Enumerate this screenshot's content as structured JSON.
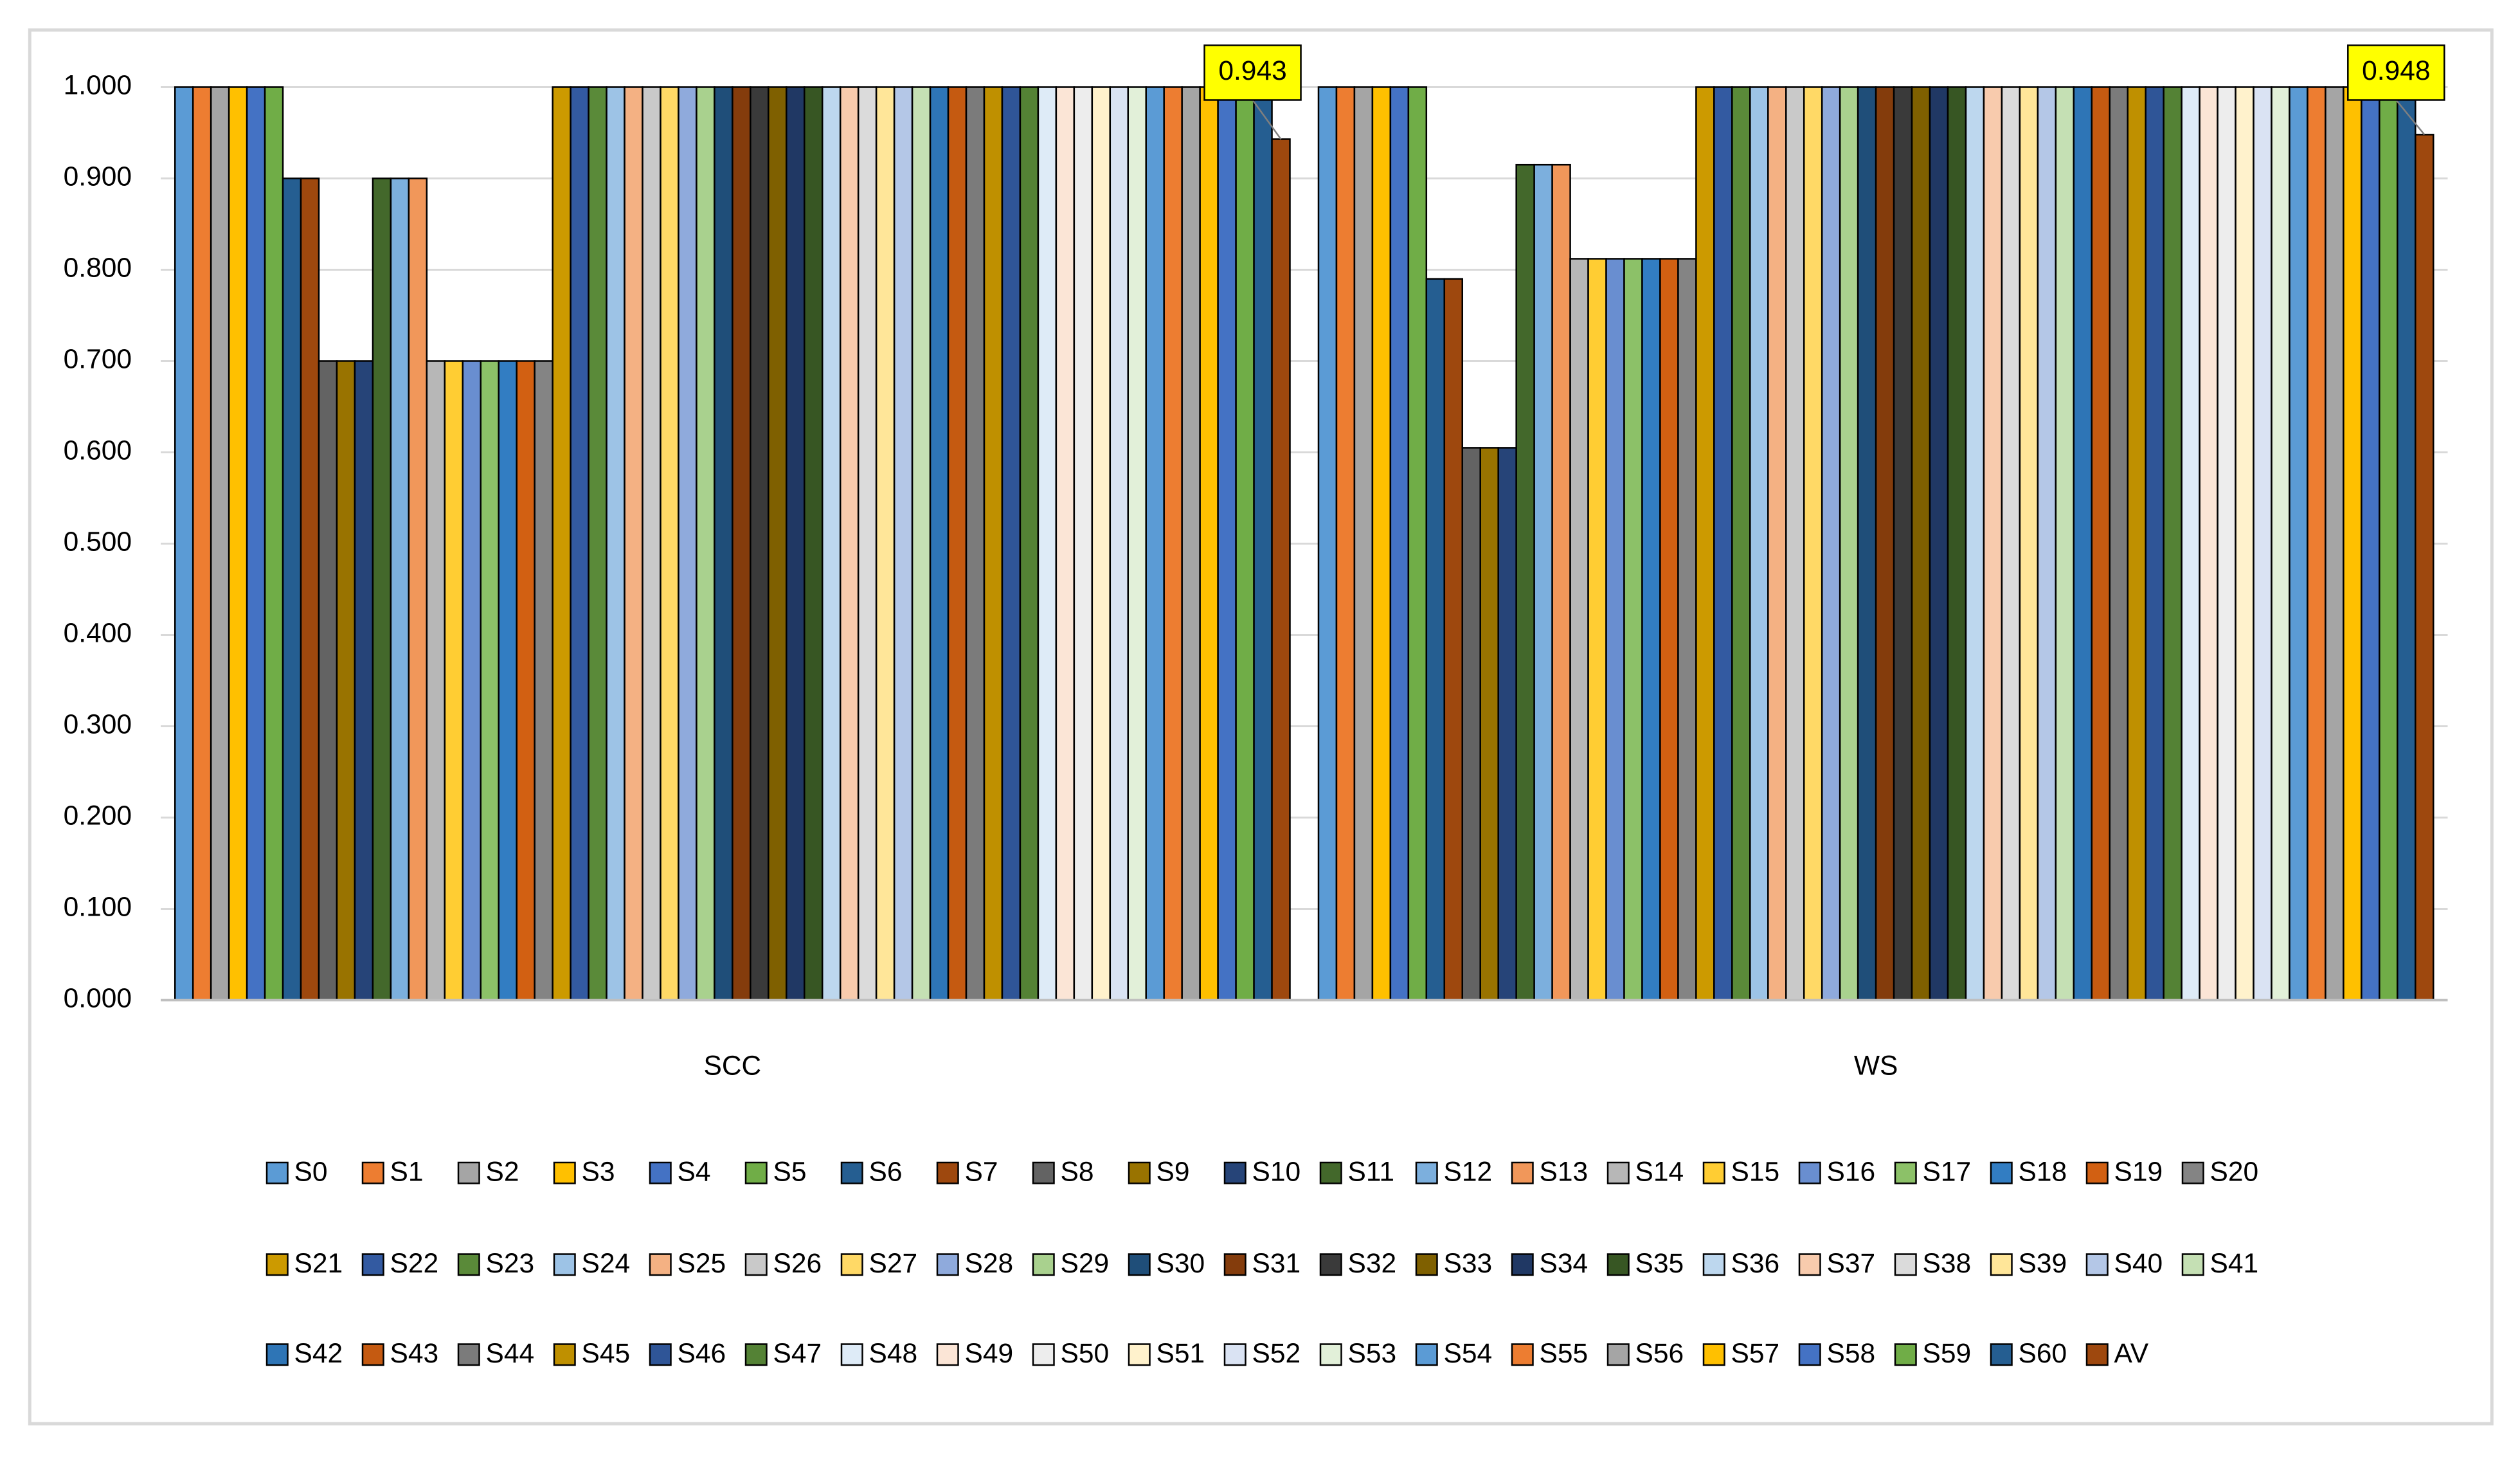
{
  "chart_data": {
    "type": "bar",
    "categories": [
      "SCC",
      "WS"
    ],
    "ylim": [
      0,
      1
    ],
    "yticks": [
      {
        "value": 0,
        "label": "0.000"
      },
      {
        "value": 0.1,
        "label": "0.100"
      },
      {
        "value": 0.2,
        "label": "0.200"
      },
      {
        "value": 0.3,
        "label": "0.300"
      },
      {
        "value": 0.4,
        "label": "0.400"
      },
      {
        "value": 0.5,
        "label": "0.500"
      },
      {
        "value": 0.6,
        "label": "0.600"
      },
      {
        "value": 0.7,
        "label": "0.700"
      },
      {
        "value": 0.8,
        "label": "0.800"
      },
      {
        "value": 0.9,
        "label": "0.900"
      },
      {
        "value": 1,
        "label": "1.000"
      }
    ],
    "grid": true,
    "legend": "bottom",
    "series": [
      {
        "name": "S0",
        "color": "#5b9bd5",
        "values": [
          1,
          1
        ]
      },
      {
        "name": "S1",
        "color": "#ed7d31",
        "values": [
          1,
          1
        ]
      },
      {
        "name": "S2",
        "color": "#a5a5a5",
        "values": [
          1,
          1
        ]
      },
      {
        "name": "S3",
        "color": "#ffc000",
        "values": [
          1,
          1
        ]
      },
      {
        "name": "S4",
        "color": "#4472c4",
        "values": [
          1,
          1
        ]
      },
      {
        "name": "S5",
        "color": "#70ad47",
        "values": [
          1,
          1
        ]
      },
      {
        "name": "S6",
        "color": "#255e91",
        "values": [
          0.9,
          0.79
        ]
      },
      {
        "name": "S7",
        "color": "#9e480e",
        "values": [
          0.9,
          0.79
        ]
      },
      {
        "name": "S8",
        "color": "#636363",
        "values": [
          0.7,
          0.605
        ]
      },
      {
        "name": "S9",
        "color": "#997300",
        "values": [
          0.7,
          0.605
        ]
      },
      {
        "name": "S10",
        "color": "#264478",
        "values": [
          0.7,
          0.605
        ]
      },
      {
        "name": "S11",
        "color": "#43682b",
        "values": [
          0.9,
          0.915
        ]
      },
      {
        "name": "S12",
        "color": "#7cafdd",
        "values": [
          0.9,
          0.915
        ]
      },
      {
        "name": "S13",
        "color": "#f1975a",
        "values": [
          0.9,
          0.915
        ]
      },
      {
        "name": "S14",
        "color": "#b7b7b7",
        "values": [
          0.7,
          0.812
        ]
      },
      {
        "name": "S15",
        "color": "#ffcd33",
        "values": [
          0.7,
          0.812
        ]
      },
      {
        "name": "S16",
        "color": "#698ed0",
        "values": [
          0.7,
          0.812
        ]
      },
      {
        "name": "S17",
        "color": "#8cc168",
        "values": [
          0.7,
          0.812
        ]
      },
      {
        "name": "S18",
        "color": "#327dc2",
        "values": [
          0.7,
          0.812
        ]
      },
      {
        "name": "S19",
        "color": "#d26012",
        "values": [
          0.7,
          0.812
        ]
      },
      {
        "name": "S20",
        "color": "#848484",
        "values": [
          0.7,
          0.812
        ]
      },
      {
        "name": "S21",
        "color": "#cc9a00",
        "values": [
          1,
          1
        ]
      },
      {
        "name": "S22",
        "color": "#335aa1",
        "values": [
          1,
          1
        ]
      },
      {
        "name": "S23",
        "color": "#5a8a39",
        "values": [
          1,
          1
        ]
      },
      {
        "name": "S24",
        "color": "#9dc3e6",
        "values": [
          1,
          1
        ]
      },
      {
        "name": "S25",
        "color": "#f4b183",
        "values": [
          1,
          1
        ]
      },
      {
        "name": "S26",
        "color": "#c9c9c9",
        "values": [
          1,
          1
        ]
      },
      {
        "name": "S27",
        "color": "#ffd966",
        "values": [
          1,
          1
        ]
      },
      {
        "name": "S28",
        "color": "#8faadc",
        "values": [
          1,
          1
        ]
      },
      {
        "name": "S29",
        "color": "#a9d18e",
        "values": [
          1,
          1
        ]
      },
      {
        "name": "S30",
        "color": "#1f4e79",
        "values": [
          1,
          1
        ]
      },
      {
        "name": "S31",
        "color": "#843c0c",
        "values": [
          1,
          1
        ]
      },
      {
        "name": "S32",
        "color": "#3a3a3a",
        "values": [
          1,
          1
        ]
      },
      {
        "name": "S33",
        "color": "#7f6000",
        "values": [
          1,
          1
        ]
      },
      {
        "name": "S34",
        "color": "#203864",
        "values": [
          1,
          1
        ]
      },
      {
        "name": "S35",
        "color": "#375623",
        "values": [
          1,
          1
        ]
      },
      {
        "name": "S36",
        "color": "#bdd7ee",
        "values": [
          1,
          1
        ]
      },
      {
        "name": "S37",
        "color": "#f8cbad",
        "values": [
          1,
          1
        ]
      },
      {
        "name": "S38",
        "color": "#dbdbdb",
        "values": [
          1,
          1
        ]
      },
      {
        "name": "S39",
        "color": "#ffe699",
        "values": [
          1,
          1
        ]
      },
      {
        "name": "S40",
        "color": "#b4c7e7",
        "values": [
          1,
          1
        ]
      },
      {
        "name": "S41",
        "color": "#c5e0b4",
        "values": [
          1,
          1
        ]
      },
      {
        "name": "S42",
        "color": "#2e75b6",
        "values": [
          1,
          1
        ]
      },
      {
        "name": "S43",
        "color": "#c55a11",
        "values": [
          1,
          1
        ]
      },
      {
        "name": "S44",
        "color": "#7b7b7b",
        "values": [
          1,
          1
        ]
      },
      {
        "name": "S45",
        "color": "#bf9000",
        "values": [
          1,
          1
        ]
      },
      {
        "name": "S46",
        "color": "#2f5597",
        "values": [
          1,
          1
        ]
      },
      {
        "name": "S47",
        "color": "#548235",
        "values": [
          1,
          1
        ]
      },
      {
        "name": "S48",
        "color": "#deebf7",
        "values": [
          1,
          1
        ]
      },
      {
        "name": "S49",
        "color": "#fbe5d6",
        "values": [
          1,
          1
        ]
      },
      {
        "name": "S50",
        "color": "#ededed",
        "values": [
          1,
          1
        ]
      },
      {
        "name": "S51",
        "color": "#fff2cc",
        "values": [
          1,
          1
        ]
      },
      {
        "name": "S52",
        "color": "#dae3f3",
        "values": [
          1,
          1
        ]
      },
      {
        "name": "S53",
        "color": "#e2f0d9",
        "values": [
          1,
          1
        ]
      },
      {
        "name": "S54",
        "color": "#5b9bd5",
        "values": [
          1,
          1
        ]
      },
      {
        "name": "S55",
        "color": "#ed7d31",
        "values": [
          1,
          1
        ]
      },
      {
        "name": "S56",
        "color": "#a5a5a5",
        "values": [
          1,
          1
        ]
      },
      {
        "name": "S57",
        "color": "#ffc000",
        "values": [
          1,
          1
        ]
      },
      {
        "name": "S58",
        "color": "#4472c4",
        "values": [
          1,
          1
        ]
      },
      {
        "name": "S59",
        "color": "#70ad47",
        "values": [
          1,
          1
        ]
      },
      {
        "name": "S60",
        "color": "#255e91",
        "values": [
          1,
          1
        ]
      },
      {
        "name": "AV",
        "color": "#9e480e",
        "values": [
          0.943,
          0.948
        ],
        "value_labels": [
          "0.943",
          "0.948"
        ]
      }
    ]
  }
}
